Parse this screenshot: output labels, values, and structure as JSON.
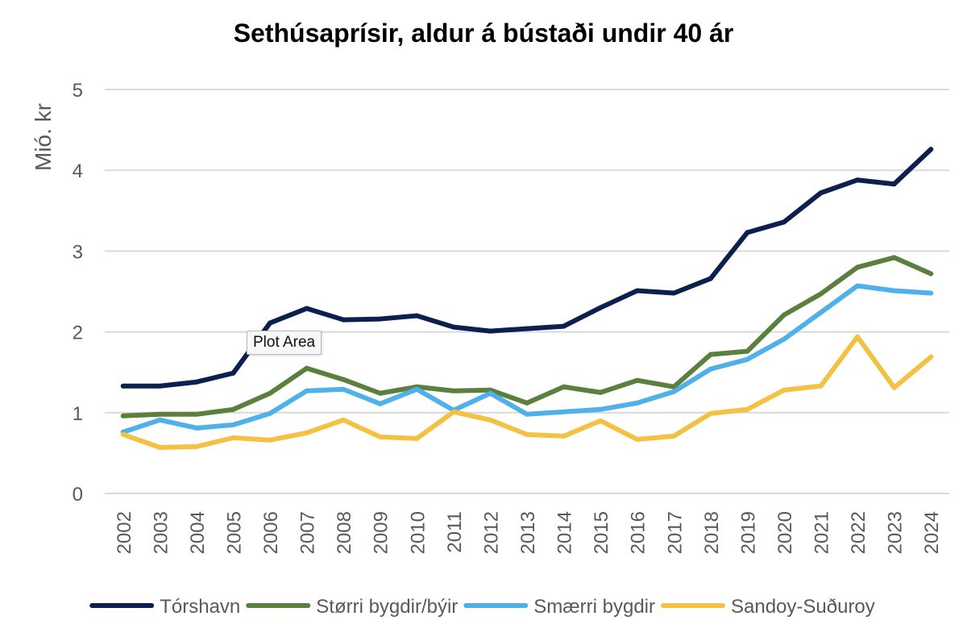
{
  "chart_data": {
    "type": "line",
    "title": "Sethúsaprísir, aldur á bústaði undir 40 ár",
    "ylabel": "Mió. kr",
    "xlabel": "",
    "ylim": [
      0,
      5
    ],
    "yticks": [
      0,
      1,
      2,
      3,
      4,
      5
    ],
    "grid": true,
    "legend_position": "bottom",
    "x": [
      "2002",
      "2003",
      "2004",
      "2005",
      "2006",
      "2007",
      "2008",
      "2009",
      "2010",
      "2011",
      "2012",
      "2013",
      "2014",
      "2015",
      "2016",
      "2017",
      "2018",
      "2019",
      "2020",
      "2021",
      "2022",
      "2023",
      "2024"
    ],
    "series": [
      {
        "name": "Tórshavn",
        "color": "#0d1f4f",
        "values": [
          1.33,
          1.33,
          1.38,
          1.49,
          2.11,
          2.29,
          2.15,
          2.16,
          2.2,
          2.06,
          2.01,
          2.04,
          2.07,
          2.3,
          2.51,
          2.48,
          2.66,
          3.23,
          3.36,
          3.72,
          3.88,
          3.83,
          4.26
        ]
      },
      {
        "name": "Størri bygdir/býir",
        "color": "#5b7f3c",
        "values": [
          0.96,
          0.98,
          0.98,
          1.04,
          1.24,
          1.55,
          1.41,
          1.24,
          1.32,
          1.27,
          1.28,
          1.12,
          1.32,
          1.25,
          1.4,
          1.32,
          1.72,
          1.76,
          2.21,
          2.47,
          2.8,
          2.92,
          2.72
        ]
      },
      {
        "name": "Smærri bygdir",
        "color": "#4fb0ea",
        "values": [
          0.76,
          0.91,
          0.81,
          0.85,
          0.99,
          1.27,
          1.29,
          1.11,
          1.29,
          1.03,
          1.24,
          0.98,
          1.01,
          1.04,
          1.12,
          1.26,
          1.54,
          1.66,
          1.91,
          2.24,
          2.57,
          2.51,
          2.48
        ]
      },
      {
        "name": "Sandoy-Suðuroy",
        "color": "#f4c243",
        "values": [
          0.73,
          0.57,
          0.58,
          0.69,
          0.66,
          0.75,
          0.91,
          0.7,
          0.68,
          1.01,
          0.91,
          0.73,
          0.71,
          0.9,
          0.67,
          0.71,
          0.99,
          1.04,
          1.28,
          1.33,
          1.94,
          1.31,
          1.69
        ]
      }
    ]
  },
  "tooltip": "Plot Area"
}
